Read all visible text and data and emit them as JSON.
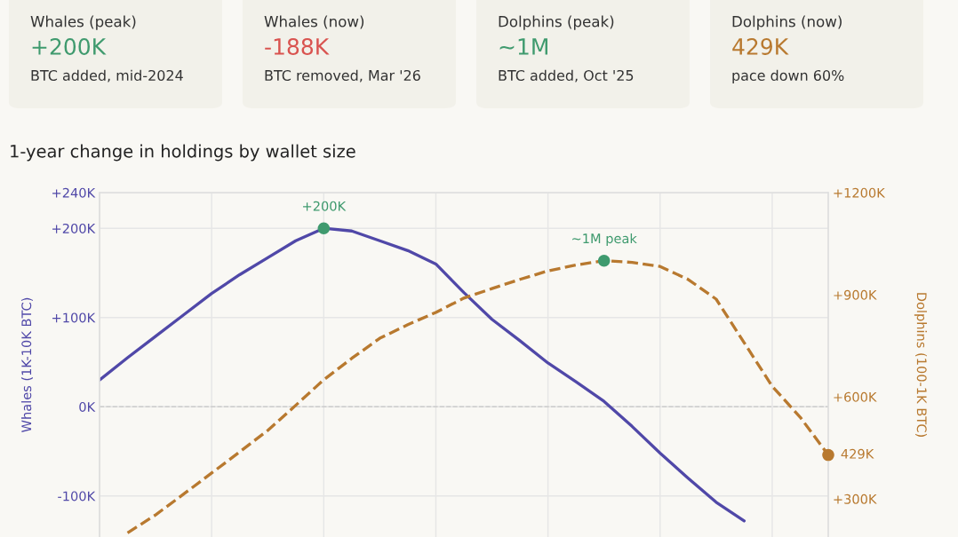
{
  "chart_data": {
    "type": "line",
    "title": "1-year change in holdings by wallet size",
    "ylabel": "Whales (1K-10K BTC)",
    "y2label": "Dolphins (100-1K BTC)",
    "annotations": [
      "Whales (peak)",
      "+200K",
      "BTC added, mid-2024",
      "Whales (now)",
      "-188K",
      "BTC removed, Mar '26",
      "Dolphins (peak)",
      "~1M",
      "BTC added, Oct '25",
      "Dolphins (now)",
      "429K",
      "pace down 60%"
    ],
    "categories": [
      null,
      null,
      null,
      null,
      null,
      null,
      null,
      null,
      null,
      null,
      null,
      null,
      null,
      null,
      null,
      null,
      null,
      null,
      null,
      null,
      null,
      null,
      null,
      null,
      null,
      null,
      null
    ],
    "ylim": [
      -146000,
      240000
    ],
    "yticks": [
      {
        "value": -100000,
        "label": "-100K"
      },
      {
        "value": 0,
        "label": "0K"
      },
      {
        "value": 100000,
        "label": "+100K"
      },
      {
        "value": 200000,
        "label": "+200K"
      },
      {
        "value": 240000,
        "label": "+240K"
      }
    ],
    "y2lim": [
      188000,
      1200000
    ],
    "y2ticks": [
      {
        "value": 300000,
        "label": "+300K"
      },
      {
        "value": 600000,
        "label": "+600K"
      },
      {
        "value": 900000,
        "label": "+900K"
      },
      {
        "value": 1200000,
        "label": "+1200K"
      }
    ],
    "tick_labels": "y",
    "grid": true,
    "ref_lines": [
      {
        "axis": "y",
        "value": 0,
        "color": "#cccccc",
        "line_style": "dashed"
      }
    ],
    "series": [
      {
        "color": "#5048a8",
        "line_style": "solid",
        "values": [
          30000,
          55000,
          79000,
          103000,
          127000,
          148000,
          167000,
          186000,
          200000,
          197000,
          186000,
          175000,
          160000,
          128000,
          98000,
          74000,
          49000,
          28000,
          6000,
          -22000,
          -52000,
          -80000,
          -107000,
          -128000,
          null,
          null,
          null
        ],
        "value_labels": [
          null,
          null,
          null,
          null,
          null,
          null,
          null,
          null,
          "+200K",
          null,
          null,
          null,
          null,
          null,
          null,
          null,
          null,
          null,
          null,
          null,
          null,
          null,
          null,
          null,
          null,
          null,
          null
        ],
        "colors": [
          null,
          null,
          null,
          null,
          null,
          null,
          null,
          null,
          "#3f9a6e",
          null,
          null,
          null,
          null,
          null,
          null,
          null,
          null,
          null,
          null,
          null,
          null,
          null,
          null,
          null,
          null,
          null,
          null
        ]
      },
      {
        "color": "#b8792f",
        "line_style": "dashed",
        "axis": "y2",
        "values": [
          null,
          200000,
          253000,
          314000,
          376000,
          438000,
          501000,
          575000,
          650000,
          713000,
          772000,
          812000,
          848000,
          890000,
          918000,
          945000,
          970000,
          987000,
          1000000,
          995000,
          983000,
          945000,
          887000,
          759000,
          631000,
          540000,
          429000
        ],
        "value_labels": [
          null,
          null,
          null,
          null,
          null,
          null,
          null,
          null,
          null,
          null,
          null,
          null,
          null,
          null,
          null,
          null,
          null,
          null,
          "~1M peak",
          null,
          null,
          null,
          null,
          null,
          null,
          null,
          "429K"
        ],
        "colors": [
          null,
          null,
          null,
          null,
          null,
          null,
          null,
          null,
          null,
          null,
          null,
          null,
          null,
          null,
          null,
          null,
          null,
          null,
          "#3f9a6e",
          null,
          null,
          null,
          null,
          null,
          null,
          null,
          "#b8792f"
        ]
      }
    ]
  }
}
